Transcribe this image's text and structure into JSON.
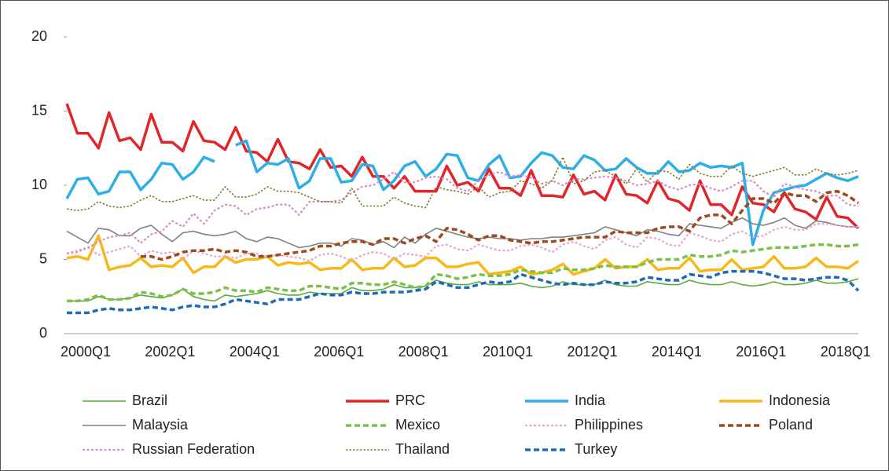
{
  "chart_data": {
    "type": "line",
    "categories": [
      "2000Q1",
      null,
      null,
      null,
      null,
      null,
      null,
      null,
      "2002Q1",
      null,
      null,
      null,
      null,
      null,
      null,
      null,
      "2004Q1",
      null,
      null,
      null,
      null,
      null,
      null,
      null,
      "2006Q1",
      null,
      null,
      null,
      null,
      null,
      null,
      null,
      "2008Q1",
      null,
      null,
      null,
      null,
      null,
      null,
      null,
      "2010Q1",
      null,
      null,
      null,
      null,
      null,
      null,
      null,
      "2012Q1",
      null,
      null,
      null,
      null,
      null,
      null,
      null,
      "2014Q1",
      null,
      null,
      null,
      null,
      null,
      null,
      null,
      "2016Q1",
      null,
      null,
      null,
      null,
      null,
      null,
      null,
      "2018Q1",
      null,
      null,
      null
    ],
    "ylim": [
      0,
      20
    ],
    "yticks": [
      0,
      5,
      10,
      15,
      20
    ],
    "grid": false,
    "series": [
      {
        "name": "Brazil",
        "color": "#5aaa3c",
        "style": "thin-solid",
        "values": [
          2.2,
          2.2,
          2.2,
          2.5,
          2.3,
          2.3,
          2.4,
          2.6,
          2.5,
          2.4,
          2.6,
          3.0,
          2.5,
          2.3,
          2.2,
          2.6,
          2.5,
          2.6,
          2.7,
          2.9,
          2.7,
          2.6,
          2.6,
          2.8,
          2.7,
          2.7,
          2.7,
          3.1,
          2.9,
          2.9,
          3.0,
          3.3,
          3.1,
          3.1,
          3.2,
          3.6,
          3.4,
          3.3,
          3.3,
          3.5,
          3.3,
          3.3,
          3.3,
          3.4,
          3.2,
          3.1,
          3.2,
          3.5,
          3.3,
          3.3,
          3.3,
          3.6,
          3.3,
          3.2,
          3.2,
          3.5,
          3.4,
          3.3,
          3.3,
          3.6,
          3.4,
          3.3,
          3.3,
          3.5,
          3.3,
          3.2,
          3.3,
          3.5,
          3.3,
          3.3,
          3.4,
          3.6,
          3.4,
          3.4,
          3.5,
          3.7
        ]
      },
      {
        "name": "PRC",
        "color": "#e0262b",
        "style": "thick-solid",
        "values": [
          15.5,
          13.5,
          13.5,
          12.5,
          14.9,
          13.0,
          13.2,
          12.4,
          14.8,
          12.9,
          12.9,
          12.3,
          14.3,
          13.0,
          12.9,
          12.4,
          13.9,
          12.3,
          12.2,
          11.6,
          13.1,
          11.6,
          11.5,
          11.1,
          12.4,
          11.2,
          11.3,
          10.6,
          11.9,
          10.6,
          10.6,
          9.8,
          10.6,
          9.6,
          9.6,
          9.6,
          11.3,
          10.0,
          10.2,
          9.6,
          11.1,
          9.8,
          9.8,
          9.3,
          11.0,
          9.3,
          9.3,
          9.2,
          10.7,
          9.4,
          9.6,
          9.0,
          10.7,
          9.4,
          9.3,
          8.8,
          10.3,
          9.1,
          8.9,
          8.3,
          10.3,
          8.7,
          8.7,
          8.0,
          9.9,
          8.8,
          8.7,
          8.2,
          9.5,
          8.4,
          8.2,
          7.7,
          9.2,
          7.9,
          7.8,
          7.1
        ]
      },
      {
        "name": "India",
        "color": "#2eaee6",
        "style": "thick-solid",
        "values": [
          9.1,
          10.4,
          10.5,
          9.4,
          9.6,
          10.9,
          10.9,
          9.7,
          10.4,
          11.5,
          11.4,
          10.4,
          10.9,
          11.9,
          11.6,
          null,
          12.7,
          13.0,
          10.9,
          11.5,
          11.4,
          11.8,
          9.8,
          10.3,
          11.8,
          11.8,
          10.2,
          10.3,
          11.4,
          11.3,
          9.7,
          10.3,
          11.3,
          11.6,
          10.6,
          11.1,
          12.1,
          12.0,
          10.5,
          10.3,
          11.4,
          12.0,
          10.5,
          10.6,
          11.5,
          12.2,
          12.0,
          11.2,
          11.1,
          12.0,
          11.7,
          11.0,
          11.1,
          11.8,
          11.2,
          10.8,
          10.8,
          11.6,
          10.9,
          11.0,
          11.5,
          11.2,
          11.3,
          11.2,
          11.5,
          6.0,
          8.3,
          9.5,
          9.7,
          9.9,
          10.0,
          10.4,
          10.8,
          10.5,
          10.3,
          10.6
        ]
      },
      {
        "name": "Indonesia",
        "color": "#f7b918",
        "style": "thick-solid",
        "values": [
          5.1,
          5.2,
          5.0,
          6.6,
          4.3,
          4.5,
          4.6,
          5.1,
          4.5,
          4.6,
          4.5,
          5.1,
          4.1,
          4.5,
          4.5,
          5.2,
          4.8,
          5.0,
          5.0,
          5.2,
          4.6,
          4.8,
          4.7,
          4.8,
          4.3,
          4.4,
          4.4,
          5.0,
          4.3,
          4.4,
          4.4,
          5.1,
          4.5,
          4.6,
          5.1,
          5.1,
          4.5,
          4.5,
          4.7,
          4.8,
          4.0,
          4.1,
          4.2,
          4.5,
          4.0,
          4.1,
          4.3,
          4.7,
          4.0,
          4.2,
          4.4,
          5.0,
          4.4,
          4.5,
          4.5,
          5.0,
          4.3,
          4.4,
          4.4,
          5.1,
          4.2,
          4.3,
          4.3,
          5.0,
          4.3,
          4.4,
          4.5,
          5.2,
          4.4,
          4.4,
          4.5,
          5.1,
          4.5,
          4.5,
          4.4,
          4.9
        ]
      },
      {
        "name": "Malaysia",
        "color": "#808080",
        "style": "thin-solid",
        "values": [
          6.9,
          6.5,
          6.1,
          7.1,
          7.0,
          6.6,
          6.6,
          7.1,
          7.3,
          6.7,
          6.2,
          6.8,
          6.9,
          6.7,
          6.6,
          6.7,
          6.9,
          6.4,
          6.2,
          6.5,
          6.4,
          6.1,
          5.8,
          5.9,
          6.1,
          6.1,
          5.9,
          6.4,
          6.3,
          6.0,
          6.2,
          5.8,
          6.5,
          6.1,
          6.7,
          7.1,
          6.9,
          6.7,
          6.5,
          6.4,
          6.5,
          6.4,
          6.4,
          6.3,
          6.4,
          6.4,
          6.5,
          6.5,
          6.6,
          6.7,
          6.8,
          7.2,
          7.0,
          6.8,
          6.6,
          7.0,
          6.9,
          6.7,
          6.6,
          7.4,
          7.3,
          7.2,
          7.1,
          7.5,
          7.8,
          7.4,
          7.3,
          7.5,
          7.8,
          7.3,
          7.1,
          7.6,
          7.5,
          7.3,
          7.2,
          7.2
        ]
      },
      {
        "name": "Mexico",
        "color": "#7cc04a",
        "style": "dashed",
        "values": [
          2.2,
          2.2,
          2.3,
          2.6,
          2.3,
          2.3,
          2.4,
          2.8,
          2.7,
          2.5,
          2.6,
          3.0,
          2.7,
          2.7,
          2.8,
          3.1,
          2.9,
          2.9,
          2.8,
          3.1,
          3.0,
          2.9,
          2.9,
          3.2,
          3.2,
          3.1,
          3.0,
          3.4,
          3.4,
          3.3,
          3.3,
          3.5,
          3.3,
          3.1,
          3.2,
          4.0,
          3.9,
          3.7,
          3.8,
          4.0,
          3.9,
          3.9,
          4.0,
          4.3,
          4.2,
          4.1,
          4.1,
          4.4,
          4.3,
          4.3,
          4.4,
          4.6,
          4.5,
          4.5,
          4.5,
          4.8,
          5.0,
          5.0,
          5.0,
          5.3,
          5.2,
          5.2,
          5.3,
          5.6,
          5.5,
          5.6,
          5.7,
          5.8,
          5.8,
          5.8,
          5.9,
          6.0,
          6.0,
          5.9,
          5.9,
          6.0
        ]
      },
      {
        "name": "Philippines",
        "color": "#e7a5cf",
        "style": "dotted",
        "values": [
          5.4,
          5.6,
          5.8,
          5.3,
          5.5,
          5.7,
          5.9,
          5.2,
          5.6,
          5.4,
          5.5,
          5.0,
          5.6,
          5.4,
          5.2,
          5.2,
          5.1,
          5.4,
          5.4,
          5.2,
          5.3,
          5.2,
          5.1,
          4.9,
          5.3,
          5.4,
          5.2,
          4.9,
          5.3,
          5.5,
          5.4,
          5.0,
          5.4,
          5.3,
          5.2,
          5.9,
          6.0,
          5.7,
          5.6,
          6.0,
          5.8,
          5.6,
          5.6,
          5.9,
          6.0,
          5.8,
          5.5,
          6.0,
          6.2,
          5.9,
          5.7,
          6.3,
          6.5,
          6.0,
          5.8,
          6.5,
          6.4,
          6.0,
          5.9,
          6.8,
          6.6,
          6.3,
          6.2,
          6.7,
          6.9,
          6.5,
          6.6,
          7.0,
          7.2,
          7.0,
          7.0,
          7.4,
          7.4,
          7.3,
          7.2,
          7.2
        ]
      },
      {
        "name": "Poland",
        "color": "#9c4a1e",
        "style": "dashed",
        "values": [
          null,
          null,
          null,
          null,
          null,
          null,
          null,
          5.2,
          5.2,
          5.0,
          5.2,
          5.5,
          5.6,
          5.6,
          5.7,
          5.5,
          5.6,
          5.5,
          5.2,
          5.2,
          5.3,
          5.4,
          5.5,
          5.6,
          5.9,
          5.9,
          6.1,
          6.2,
          6.2,
          6.0,
          6.4,
          6.4,
          6.1,
          6.4,
          6.6,
          6.2,
          7.1,
          7.0,
          6.7,
          6.3,
          6.6,
          6.6,
          6.3,
          6.2,
          6.1,
          6.2,
          6.2,
          6.3,
          6.4,
          6.5,
          6.5,
          6.5,
          6.9,
          6.8,
          6.8,
          6.8,
          7.1,
          7.2,
          7.2,
          6.9,
          7.8,
          8.0,
          8.0,
          7.4,
          8.3,
          9.1,
          9.1,
          8.8,
          9.5,
          9.3,
          9.3,
          8.9,
          9.5,
          9.6,
          9.3,
          8.8
        ]
      },
      {
        "name": "Russian Federation",
        "color": "#d98cc6",
        "style": "dotted",
        "values": [
          5.4,
          5.5,
          5.8,
          6.2,
          6.5,
          6.6,
          6.8,
          6.1,
          6.7,
          6.9,
          7.6,
          7.2,
          8.1,
          7.4,
          8.3,
          8.7,
          8.6,
          8.0,
          8.4,
          8.5,
          8.7,
          8.7,
          8.0,
          8.9,
          8.9,
          8.9,
          9.0,
          9.5,
          9.9,
          10.0,
          10.4,
          10.9,
          10.2,
          10.2,
          10.5,
          10.6,
          10.4,
          9.8,
          9.6,
          10.3,
          10.7,
          10.9,
          10.6,
          10.7,
          10.5,
          10.1,
          10.3,
          10.0,
          10.4,
          10.4,
          10.5,
          10.6,
          10.5,
          10.3,
          10.0,
          10.1,
          10.3,
          9.9,
          9.7,
          10.0,
          10.1,
          9.8,
          9.6,
          9.9,
          10.3,
          10.3,
          9.6,
          9.2,
          10.1,
          9.9,
          9.7,
          9.6,
          9.3,
          9.3,
          8.7,
          8.6
        ]
      },
      {
        "name": "Thailand",
        "color": "#8a7a2a",
        "style": "fine-dotted",
        "values": [
          8.4,
          8.3,
          8.4,
          8.9,
          8.6,
          8.5,
          8.6,
          9.0,
          9.3,
          8.9,
          8.9,
          9.1,
          9.3,
          9.0,
          9.0,
          9.9,
          9.2,
          9.2,
          9.4,
          9.9,
          9.6,
          9.6,
          9.5,
          9.2,
          8.9,
          8.9,
          8.8,
          9.8,
          8.6,
          8.6,
          8.6,
          9.2,
          8.8,
          8.6,
          8.5,
          9.9,
          9.7,
          9.6,
          9.4,
          9.9,
          9.2,
          9.5,
          9.6,
          10.3,
          10.1,
          9.8,
          10.3,
          11.9,
          10.1,
          10.3,
          10.9,
          11.0,
          10.6,
          10.1,
          11.1,
          10.2,
          11.0,
          10.9,
          10.4,
          11.4,
          10.8,
          10.6,
          10.6,
          11.3,
          10.8,
          10.6,
          10.8,
          11.0,
          11.2,
          10.7,
          10.7,
          11.1,
          10.8,
          10.7,
          10.8,
          11.0
        ]
      },
      {
        "name": "Turkey",
        "color": "#1f6bb5",
        "style": "dashed",
        "values": [
          1.4,
          1.4,
          1.4,
          1.6,
          1.7,
          1.6,
          1.6,
          1.7,
          1.8,
          1.7,
          1.6,
          1.8,
          1.9,
          1.8,
          1.8,
          2.0,
          2.3,
          2.2,
          2.1,
          2.0,
          2.3,
          2.3,
          2.3,
          2.5,
          2.7,
          2.6,
          2.6,
          2.8,
          2.7,
          2.7,
          2.8,
          2.8,
          2.8,
          2.9,
          3.0,
          3.5,
          3.3,
          3.1,
          3.1,
          3.3,
          3.5,
          3.4,
          3.5,
          4.0,
          3.8,
          3.6,
          3.4,
          3.3,
          3.4,
          3.3,
          3.3,
          3.5,
          3.4,
          3.4,
          3.5,
          3.8,
          3.7,
          3.6,
          3.6,
          4.0,
          3.9,
          3.8,
          4.1,
          4.2,
          4.2,
          4.2,
          4.1,
          3.9,
          3.7,
          3.7,
          3.6,
          3.7,
          3.8,
          3.8,
          3.6,
          2.9
        ]
      }
    ]
  }
}
